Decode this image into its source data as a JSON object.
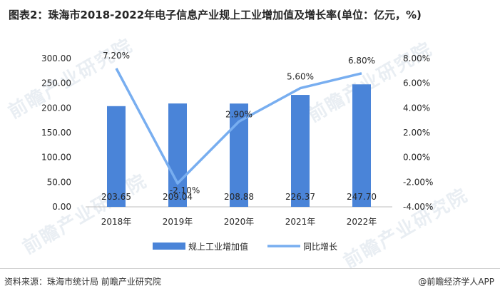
{
  "title": "图表2：珠海市2018-2022年电子信息产业规上工业增加值及增长率(单位：亿元，%)",
  "source": "资料来源：珠海市统计局 前瞻产业研究院",
  "brand": "@前瞻经济学人APP",
  "watermark": "前瞻产业研究院",
  "colors": {
    "bar": "#4a84d8",
    "line": "#78aef0",
    "axis": "#bfbfbf",
    "text": "#262626"
  },
  "chart_data": {
    "type": "bar+line",
    "categories": [
      "2018年",
      "2019年",
      "2020年",
      "2021年",
      "2022年"
    ],
    "series": [
      {
        "name": "规上工业增加值",
        "type": "bar",
        "axis": "left",
        "values": [
          203.65,
          209.04,
          208.88,
          226.37,
          247.7
        ],
        "labels": [
          "203.65",
          "209.04",
          "208.88",
          "226.37",
          "247.70"
        ]
      },
      {
        "name": "同比增长",
        "type": "line",
        "axis": "right",
        "values": [
          7.2,
          -2.1,
          2.9,
          5.6,
          6.8
        ],
        "labels": [
          "7.20%",
          "-2.10%",
          "2.90%",
          "5.60%",
          "6.80%"
        ]
      }
    ],
    "y_left": {
      "min": 0,
      "max": 300,
      "ticks": [
        "0.00",
        "50.00",
        "100.00",
        "150.00",
        "200.00",
        "250.00",
        "300.00"
      ]
    },
    "y_right": {
      "min": -4,
      "max": 8,
      "ticks": [
        "-4.00%",
        "-2.00%",
        "0.00%",
        "2.00%",
        "4.00%",
        "6.00%",
        "8.00%"
      ]
    },
    "legend_position": "bottom",
    "grid": false
  }
}
